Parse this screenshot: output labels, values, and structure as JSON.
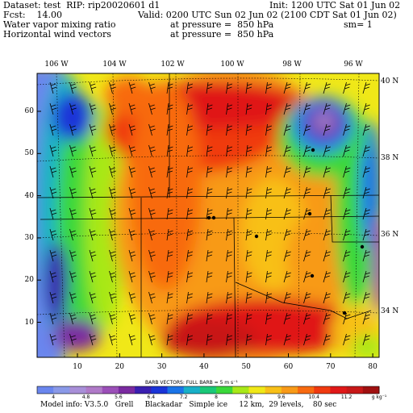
{
  "header": {
    "dataset": "Dataset: test  RIP: rip20020601 d1",
    "init": "Init: 1200 UTC Sat 01 Jun 02",
    "fcst": "Fcst:    14.00",
    "valid": "Valid: 0200 UTC Sun 02 Jun 02 (2100 CDT Sat 01 Jun 02)",
    "field1": "Water vapor mixing ratio",
    "field1_level": "at pressure =  850 hPa",
    "sm": "sm= 1",
    "field2": "Horizontal wind vectors",
    "field2_level": "at pressure =  850 hPa"
  },
  "lon_labels": [
    "106 W",
    "104 W",
    "102 W",
    "100 W",
    "98 W",
    "96 W"
  ],
  "lat_labels": [
    "40 N",
    "38 N",
    "36 N",
    "34 N"
  ],
  "x_ticks": [
    "10",
    "20",
    "30",
    "40",
    "50",
    "60",
    "70",
    "80"
  ],
  "y_ticks": [
    "60",
    "50",
    "40",
    "30",
    "20",
    "10"
  ],
  "barb_legend": "BARB VECTORS:  FULL BARB = 5 m s⁻¹",
  "colorbar": {
    "labels": [
      "4",
      "4.8",
      "5.6",
      "6.4",
      "7.2",
      "8",
      "8.8",
      "9.6",
      "10.4",
      "11.2"
    ],
    "unit": "g kg⁻¹",
    "colors": [
      "#6a86ee",
      "#8a99e8",
      "#a88fd8",
      "#b07ac8",
      "#9b4fb8",
      "#7a2aa0",
      "#3a1fb0",
      "#1a34d8",
      "#1a74e8",
      "#18b0c8",
      "#1ac878",
      "#3ad83a",
      "#a8e818",
      "#f0e818",
      "#f8c018",
      "#f89a18",
      "#f86a10",
      "#f03a10",
      "#e01818",
      "#c81818",
      "#a01010"
    ]
  },
  "model_info": "Model info: V3.5.0   Grell     Blackadar   Simple ice     12 km,  29 levels,    80 sec"
}
